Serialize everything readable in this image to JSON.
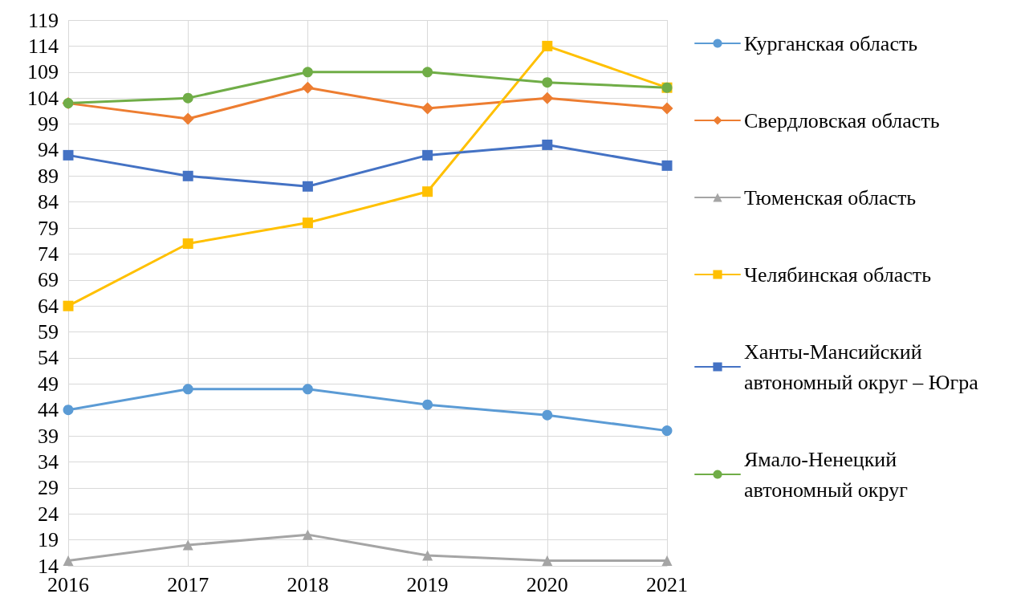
{
  "chart_data": {
    "type": "line",
    "categories": [
      "2016",
      "2017",
      "2018",
      "2019",
      "2020",
      "2021"
    ],
    "ylim": [
      14,
      119
    ],
    "yticks": [
      14,
      19,
      24,
      29,
      34,
      39,
      44,
      49,
      54,
      59,
      64,
      69,
      74,
      79,
      84,
      89,
      94,
      99,
      104,
      109,
      114,
      119
    ],
    "grid": true,
    "legend": "right",
    "series": [
      {
        "name": "Курганская область",
        "color": "#5b9bd5",
        "marker": "circle",
        "values": [
          44,
          48,
          48,
          45,
          43,
          40
        ]
      },
      {
        "name": "Свердловская область",
        "color": "#ed7d31",
        "marker": "diamond",
        "values": [
          103,
          100,
          106,
          102,
          104,
          102
        ]
      },
      {
        "name": "Тюменская область",
        "color": "#a5a5a5",
        "marker": "triangle",
        "values": [
          15,
          18,
          20,
          16,
          15,
          15
        ]
      },
      {
        "name": "Челябинская область",
        "color": "#ffc000",
        "marker": "square",
        "values": [
          64,
          76,
          80,
          86,
          114,
          106
        ]
      },
      {
        "name": "Ханты-Мансийский автономный округ – Югра",
        "color": "#4472c4",
        "marker": "square",
        "values": [
          93,
          89,
          87,
          93,
          95,
          91
        ]
      },
      {
        "name": "Ямало-Ненецкий автономный округ",
        "color": "#70ad47",
        "marker": "circle",
        "values": [
          103,
          104,
          109,
          109,
          107,
          106
        ]
      }
    ]
  }
}
